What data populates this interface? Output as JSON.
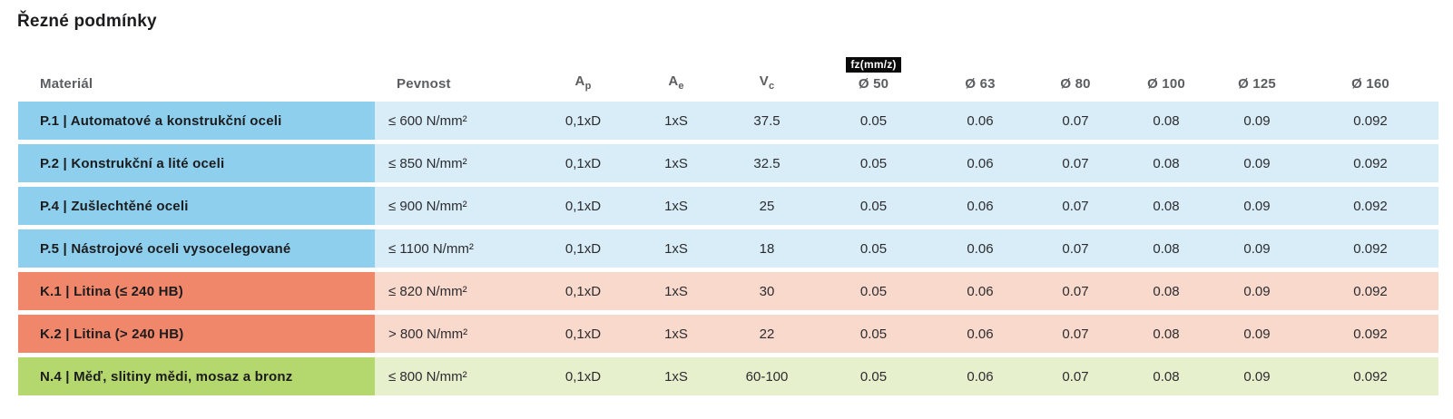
{
  "title": "Řezné podmínky",
  "colors": {
    "blue_dark": "#8dcfec",
    "blue_light": "#d8edf7",
    "salmon_dark": "#f0876a",
    "salmon_light": "#f9d9cc",
    "green_dark": "#b5d86e",
    "green_light": "#e6f0cd",
    "badge_bg": "#0a0a0a",
    "badge_text": "#ffffff",
    "header_text": "#5c5d60",
    "title_text": "#1c1c1f"
  },
  "table": {
    "headers": {
      "material": "Materiál",
      "pevnost": "Pevnost",
      "ap": {
        "base": "A",
        "sub": "p"
      },
      "ae": {
        "base": "A",
        "sub": "e"
      },
      "vc": {
        "base": "V",
        "sub": "c"
      },
      "fz_badge": "fz(mm/z)",
      "diameters": [
        "Ø 50",
        "Ø 63",
        "Ø 80",
        "Ø 100",
        "Ø 125",
        "Ø 160"
      ]
    },
    "rows": [
      {
        "material": "P.1 | Automatové a konstrukční oceli",
        "pevnost": "≤ 600 N/mm²",
        "ap": "0,1xD",
        "ae": "1xS",
        "vc": "37.5",
        "fz": [
          "0.05",
          "0.06",
          "0.07",
          "0.08",
          "0.09",
          "0.092"
        ],
        "theme": "blue"
      },
      {
        "material": "P.2 | Konstrukční a lité oceli",
        "pevnost": "≤ 850 N/mm²",
        "ap": "0,1xD",
        "ae": "1xS",
        "vc": "32.5",
        "fz": [
          "0.05",
          "0.06",
          "0.07",
          "0.08",
          "0.09",
          "0.092"
        ],
        "theme": "blue"
      },
      {
        "material": "P.4 | Zušlechtěné oceli",
        "pevnost": "≤ 900 N/mm²",
        "ap": "0,1xD",
        "ae": "1xS",
        "vc": "25",
        "fz": [
          "0.05",
          "0.06",
          "0.07",
          "0.08",
          "0.09",
          "0.092"
        ],
        "theme": "blue"
      },
      {
        "material": "P.5 | Nástrojové oceli vysocelegované",
        "pevnost": "≤ 1100 N/mm²",
        "ap": "0,1xD",
        "ae": "1xS",
        "vc": "18",
        "fz": [
          "0.05",
          "0.06",
          "0.07",
          "0.08",
          "0.09",
          "0.092"
        ],
        "theme": "blue"
      },
      {
        "material": "K.1 | Litina (≤ 240 HB)",
        "pevnost": "≤ 820 N/mm²",
        "ap": "0,1xD",
        "ae": "1xS",
        "vc": "30",
        "fz": [
          "0.05",
          "0.06",
          "0.07",
          "0.08",
          "0.09",
          "0.092"
        ],
        "theme": "salmon"
      },
      {
        "material": "K.2 | Litina (> 240 HB)",
        "pevnost": "> 800 N/mm²",
        "ap": "0,1xD",
        "ae": "1xS",
        "vc": "22",
        "fz": [
          "0.05",
          "0.06",
          "0.07",
          "0.08",
          "0.09",
          "0.092"
        ],
        "theme": "salmon"
      },
      {
        "material": "N.4 | Měď, slitiny mědi, mosaz a bronz",
        "pevnost": "≤ 800 N/mm²",
        "ap": "0,1xD",
        "ae": "1xS",
        "vc": "60-100",
        "fz": [
          "0.05",
          "0.06",
          "0.07",
          "0.08",
          "0.09",
          "0.092"
        ],
        "theme": "green"
      }
    ]
  }
}
